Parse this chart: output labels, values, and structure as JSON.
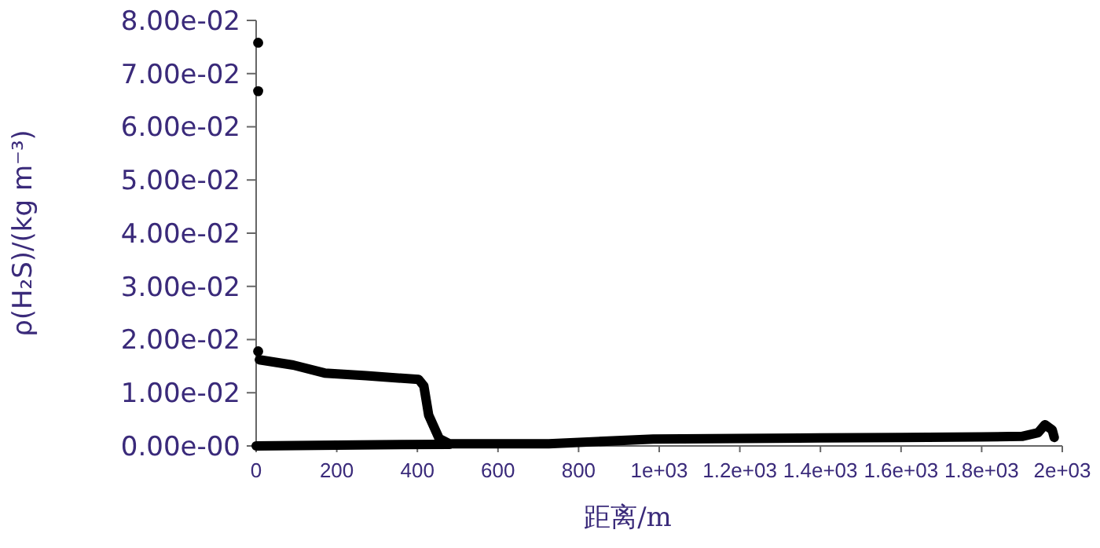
{
  "chart_data": {
    "type": "line",
    "xlabel": "距离/m",
    "ylabel": "ρ(H₂S)/(kg m⁻³)",
    "xlim": [
      0,
      2000
    ],
    "ylim": [
      0,
      0.08
    ],
    "xticks": [
      0,
      200,
      400,
      600,
      800,
      {
        "value": 1000,
        "label": "1e+03"
      },
      {
        "value": 1200,
        "label": "1.2e+03"
      },
      {
        "value": 1400,
        "label": "1.4e+03"
      },
      {
        "value": 1600,
        "label": "1.6e+03"
      },
      {
        "value": 1800,
        "label": "1.8e+03"
      },
      {
        "value": 2000,
        "label": "2e+03"
      }
    ],
    "yticks": [
      {
        "value": 0,
        "label": "0.00e-00"
      },
      {
        "value": 0.01,
        "label": "1.00e-02"
      },
      {
        "value": 0.02,
        "label": "2.00e-02"
      },
      {
        "value": 0.03,
        "label": "3.00e-02"
      },
      {
        "value": 0.04,
        "label": "4.00e-02"
      },
      {
        "value": 0.05,
        "label": "5.00e-02"
      },
      {
        "value": 0.06,
        "label": "6.00e-02"
      },
      {
        "value": 0.07,
        "label": "7.00e-02"
      },
      {
        "value": 0.08,
        "label": "8.00e-02"
      }
    ],
    "marker": "none",
    "line_style": "solid",
    "series": [
      {
        "color": "#000000",
        "x": [
          8,
          92,
          170,
          273,
          403,
          416,
          428,
          454,
          480,
          726,
          985,
          1200,
          1400,
          1600,
          1800,
          1900,
          1940,
          1957,
          1975,
          1980
        ],
        "values": [
          0.0162,
          0.0152,
          0.0137,
          0.0132,
          0.0125,
          0.0113,
          0.0058,
          0.0014,
          0.0004,
          0.0004,
          0.0013,
          0.0014,
          0.0015,
          0.0016,
          0.0017,
          0.0018,
          0.0025,
          0.004,
          0.003,
          0.0016
        ]
      },
      {
        "color": "#000000",
        "x": [
          0,
          250,
          480
        ],
        "values": [
          0,
          0.0002,
          0.0003
        ]
      },
      {
        "type": "scatter",
        "marker": "circle",
        "color": "#000000",
        "x": [
          5,
          5,
          5
        ],
        "values": [
          0.0758,
          0.0667,
          0.0178
        ]
      }
    ]
  }
}
